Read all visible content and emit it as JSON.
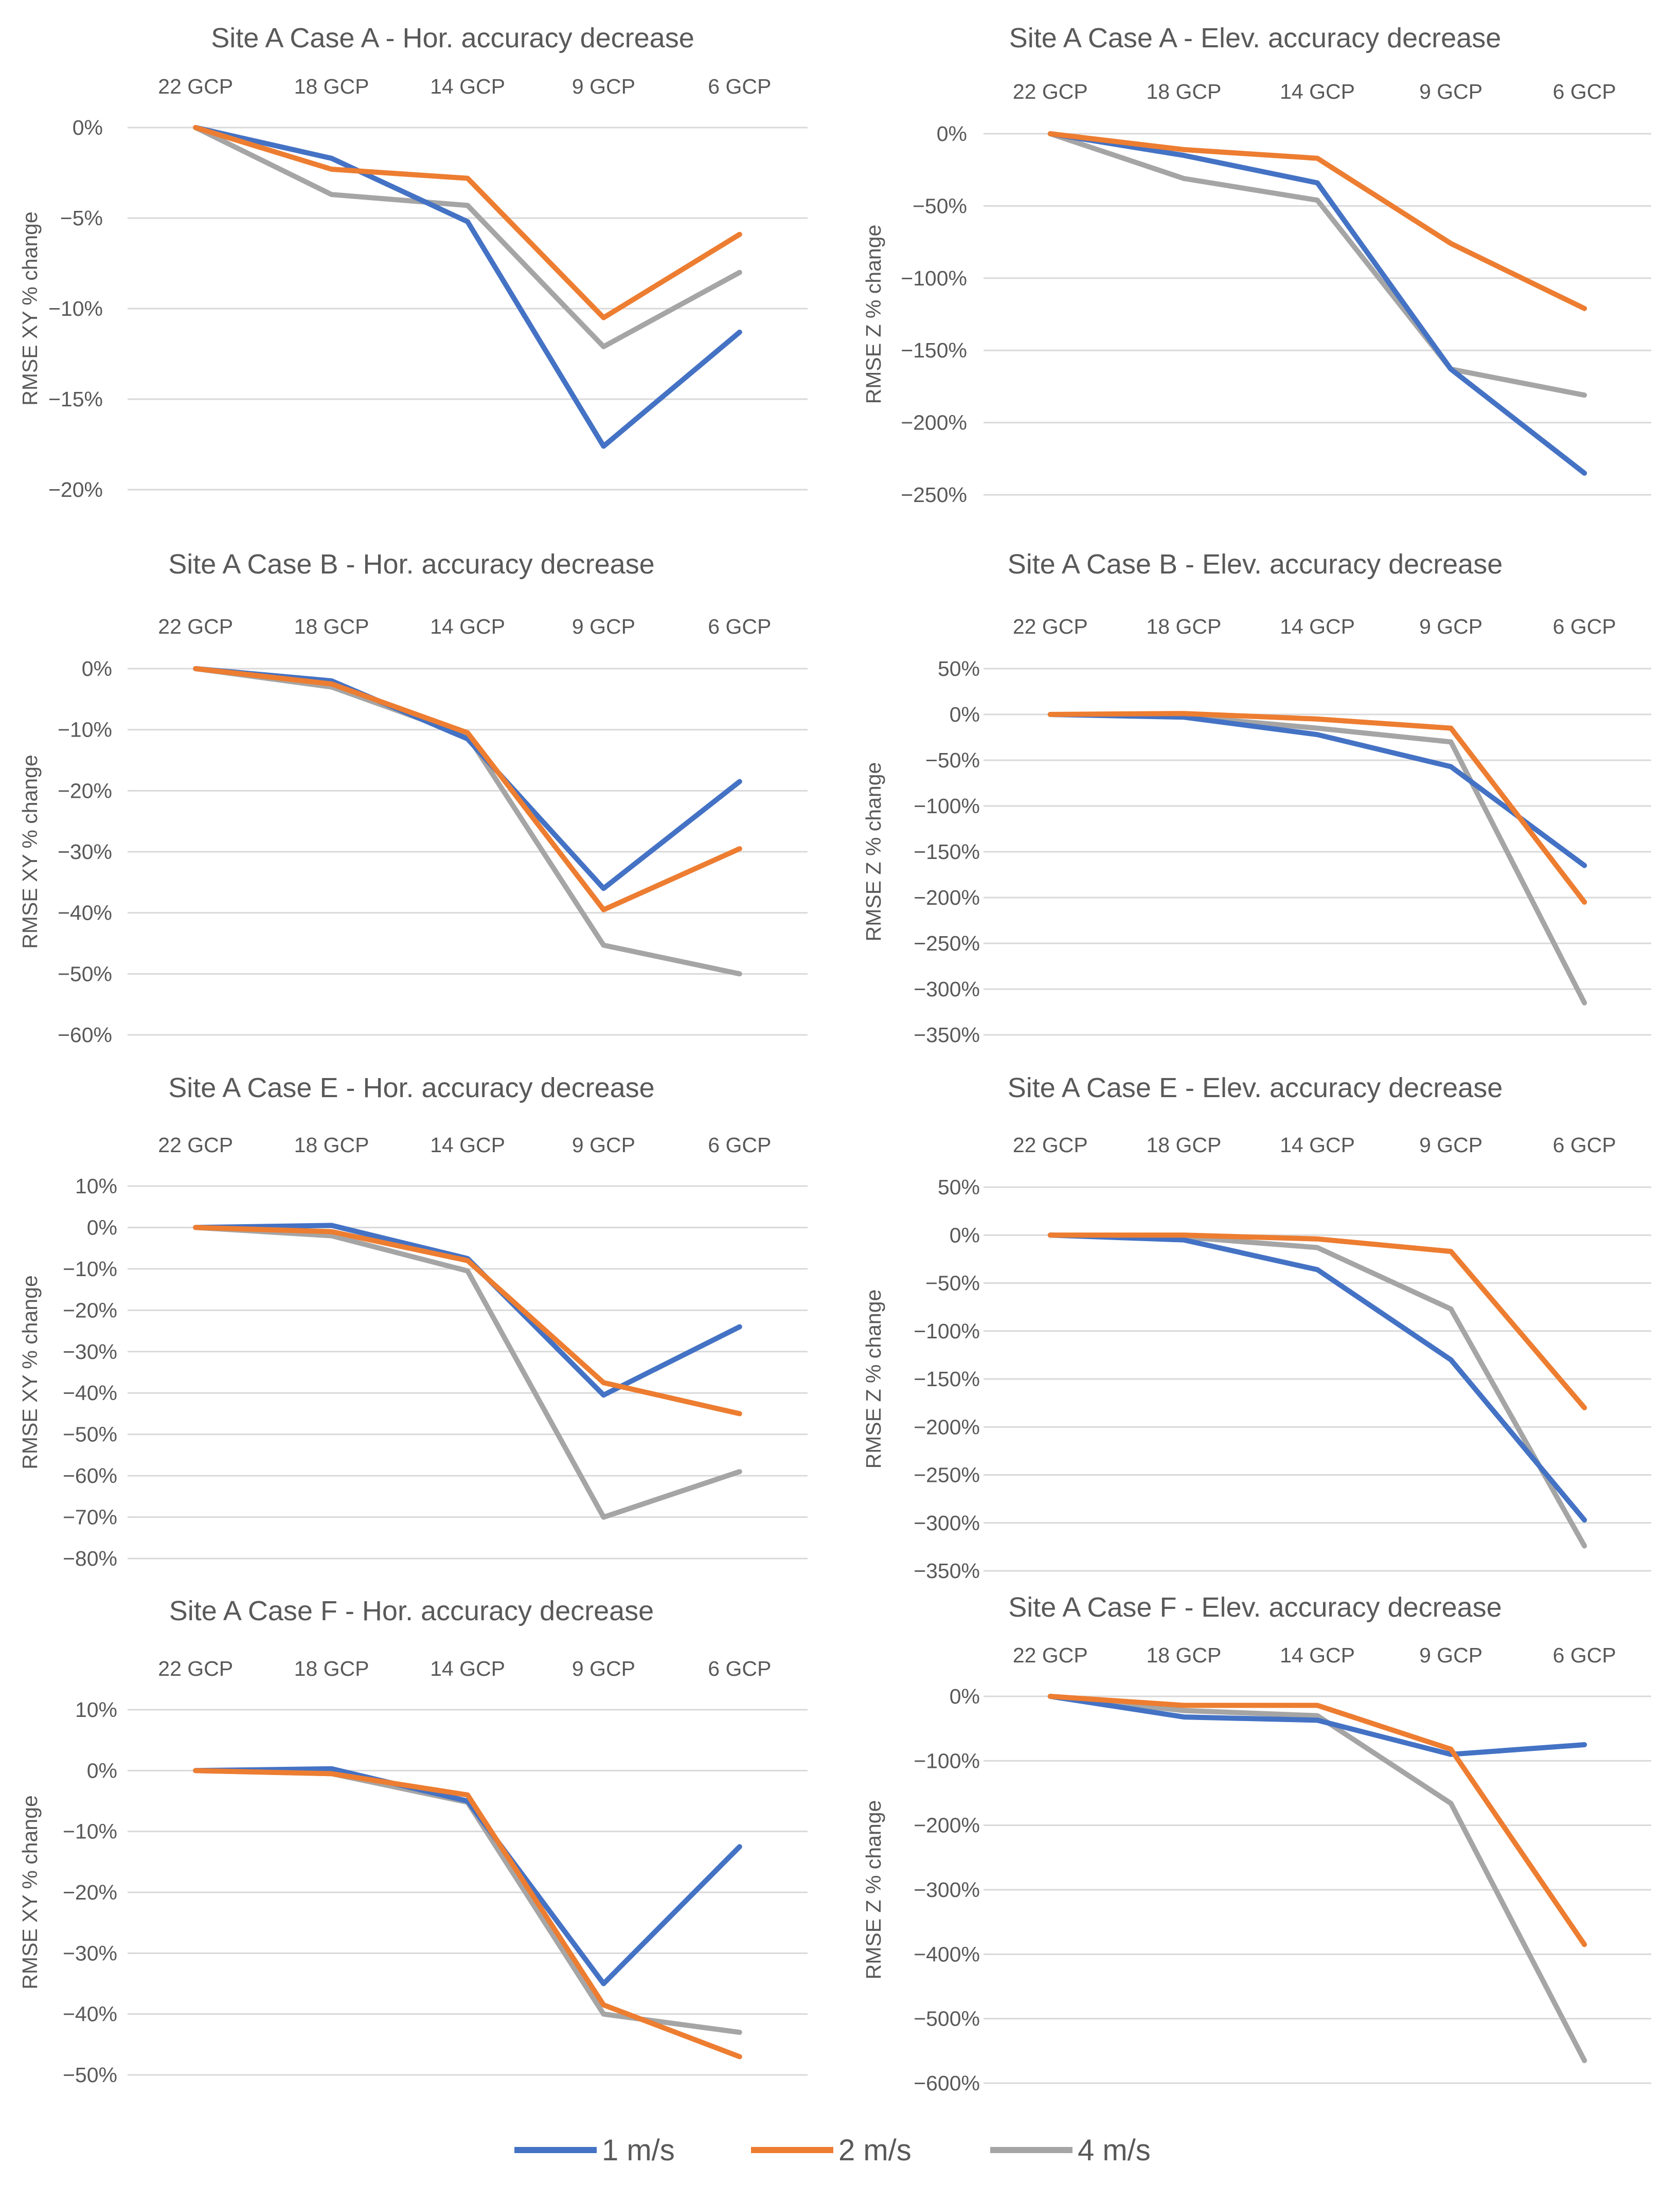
{
  "colors": {
    "1 m/s": "#4472c4",
    "2 m/s": "#ed7d31",
    "4 m/s": "#a5a5a5"
  },
  "legend": [
    {
      "label": "1 m/s",
      "color": "#4472c4"
    },
    {
      "label": "2 m/s",
      "color": "#ed7d31"
    },
    {
      "label": "4 m/s",
      "color": "#a5a5a5"
    }
  ],
  "chart_data": [
    {
      "type": "line",
      "title": "Site A Case A - Hor. accuracy decrease",
      "ylabel": "RMSE XY % change",
      "categories": [
        "22 GCP",
        "18 GCP",
        "14 GCP",
        "9 GCP",
        "6 GCP"
      ],
      "ylim": [
        -20,
        0
      ],
      "yticks": [
        0,
        -5,
        -10,
        -15,
        -20
      ],
      "ytick_labels": [
        "0%",
        "−5%",
        "−10%",
        "−15%",
        "−20%"
      ],
      "series": [
        {
          "name": "1 m/s",
          "values": [
            0,
            -1.7,
            -5.2,
            -17.6,
            -11.3
          ]
        },
        {
          "name": "2 m/s",
          "values": [
            0,
            -2.3,
            -2.8,
            -10.5,
            -5.9
          ]
        },
        {
          "name": "4 m/s",
          "values": [
            0,
            -3.7,
            -4.3,
            -12.1,
            -8.0
          ]
        }
      ]
    },
    {
      "type": "line",
      "title": "Site A Case A - Elev. accuracy decrease",
      "ylabel": "RMSE Z % change",
      "categories": [
        "22 GCP",
        "18 GCP",
        "14 GCP",
        "9 GCP",
        "6 GCP"
      ],
      "ylim": [
        -250,
        0
      ],
      "yticks": [
        0,
        -50,
        -100,
        -150,
        -200,
        -250
      ],
      "ytick_labels": [
        "0%",
        "−50%",
        "−100%",
        "−150%",
        "−200%",
        "−250%"
      ],
      "series": [
        {
          "name": "1 m/s",
          "values": [
            0,
            -15,
            -34,
            -163,
            -235
          ]
        },
        {
          "name": "2 m/s",
          "values": [
            0,
            -11,
            -17,
            -76,
            -121
          ]
        },
        {
          "name": "4 m/s",
          "values": [
            0,
            -31,
            -46,
            -163,
            -181
          ]
        }
      ]
    },
    {
      "type": "line",
      "title": "Site A Case B - Hor. accuracy decrease",
      "ylabel": "RMSE XY % change",
      "categories": [
        "22 GCP",
        "18 GCP",
        "14 GCP",
        "9 GCP",
        "6 GCP"
      ],
      "ylim": [
        -60,
        0
      ],
      "yticks": [
        0,
        -10,
        -20,
        -30,
        -40,
        -50,
        -60
      ],
      "ytick_labels": [
        "0%",
        "−10%",
        "−20%",
        "−30%",
        "−40%",
        "−50%",
        "−60%"
      ],
      "series": [
        {
          "name": "1 m/s",
          "values": [
            0,
            -2,
            -11.5,
            -36,
            -18.5
          ]
        },
        {
          "name": "2 m/s",
          "values": [
            0,
            -2.5,
            -10.5,
            -39.5,
            -29.5
          ]
        },
        {
          "name": "4 m/s",
          "values": [
            0,
            -3,
            -11,
            -45.3,
            -50
          ]
        }
      ]
    },
    {
      "type": "line",
      "title": "Site A Case B - Elev. accuracy decrease",
      "ylabel": "RMSE Z % change",
      "categories": [
        "22 GCP",
        "18 GCP",
        "14 GCP",
        "9 GCP",
        "6 GCP"
      ],
      "ylim": [
        -350,
        50
      ],
      "yticks": [
        50,
        0,
        -50,
        -100,
        -150,
        -200,
        -250,
        -300,
        -350
      ],
      "ytick_labels": [
        "50%",
        "0%",
        "−50%",
        "−100%",
        "−150%",
        "−200%",
        "−250%",
        "−300%",
        "−350%"
      ],
      "series": [
        {
          "name": "1 m/s",
          "values": [
            0,
            -3,
            -22,
            -57,
            -165
          ]
        },
        {
          "name": "2 m/s",
          "values": [
            0,
            1,
            -5,
            -15,
            -205
          ]
        },
        {
          "name": "4 m/s",
          "values": [
            0,
            -2,
            -15,
            -30,
            -315
          ]
        }
      ]
    },
    {
      "type": "line",
      "title": "Site A Case E - Hor. accuracy decrease",
      "ylabel": "RMSE XY % change",
      "categories": [
        "22 GCP",
        "18 GCP",
        "14 GCP",
        "9 GCP",
        "6 GCP"
      ],
      "ylim": [
        -80,
        10
      ],
      "yticks": [
        10,
        0,
        -10,
        -20,
        -30,
        -40,
        -50,
        -60,
        -70,
        -80
      ],
      "ytick_labels": [
        "10%",
        "0%",
        "−10%",
        "−20%",
        "−30%",
        "−40%",
        "−50%",
        "−60%",
        "−70%",
        "−80%"
      ],
      "series": [
        {
          "name": "1 m/s",
          "values": [
            0,
            0.5,
            -7.5,
            -40.5,
            -24
          ]
        },
        {
          "name": "2 m/s",
          "values": [
            0,
            -1,
            -8,
            -37.5,
            -45
          ]
        },
        {
          "name": "4 m/s",
          "values": [
            0,
            -2,
            -10.5,
            -70,
            -59
          ]
        }
      ]
    },
    {
      "type": "line",
      "title": "Site A Case E - Elev. accuracy decrease",
      "ylabel": "RMSE Z % change",
      "categories": [
        "22 GCP",
        "18 GCP",
        "14 GCP",
        "9 GCP",
        "6 GCP"
      ],
      "ylim": [
        -350,
        50
      ],
      "yticks": [
        50,
        0,
        -50,
        -100,
        -150,
        -200,
        -250,
        -300,
        -350
      ],
      "ytick_labels": [
        "50%",
        "0%",
        "−50%",
        "−100%",
        "−150%",
        "−200%",
        "−250%",
        "−300%",
        "−350%"
      ],
      "series": [
        {
          "name": "1 m/s",
          "values": [
            0,
            -5,
            -36,
            -130,
            -297
          ]
        },
        {
          "name": "2 m/s",
          "values": [
            0,
            0,
            -4,
            -17,
            -180
          ]
        },
        {
          "name": "4 m/s",
          "values": [
            0,
            -2,
            -13,
            -77,
            -324
          ]
        }
      ]
    },
    {
      "type": "line",
      "title": "Site A Case F - Hor. accuracy decrease",
      "ylabel": "RMSE XY % change",
      "categories": [
        "22 GCP",
        "18 GCP",
        "14 GCP",
        "9 GCP",
        "6 GCP"
      ],
      "ylim": [
        -50,
        10
      ],
      "yticks": [
        10,
        0,
        -10,
        -20,
        -30,
        -40,
        -50
      ],
      "ytick_labels": [
        "10%",
        "0%",
        "−10%",
        "−20%",
        "−30%",
        "−40%",
        "−50%"
      ],
      "series": [
        {
          "name": "1 m/s",
          "values": [
            0,
            0.3,
            -5,
            -35,
            -12.5
          ]
        },
        {
          "name": "2 m/s",
          "values": [
            0,
            -0.5,
            -4,
            -38.5,
            -47
          ]
        },
        {
          "name": "4 m/s",
          "values": [
            0,
            -0.5,
            -5.2,
            -40,
            -43
          ]
        }
      ]
    },
    {
      "type": "line",
      "title": "Site A Case F - Elev. accuracy decrease",
      "ylabel": "RMSE Z % change",
      "categories": [
        "22 GCP",
        "18 GCP",
        "14 GCP",
        "9 GCP",
        "6 GCP"
      ],
      "ylim": [
        -600,
        0
      ],
      "yticks": [
        0,
        -100,
        -200,
        -300,
        -400,
        -500,
        -600
      ],
      "ytick_labels": [
        "0%",
        "−100%",
        "−200%",
        "−300%",
        "−400%",
        "−500%",
        "−600%"
      ],
      "series": [
        {
          "name": "1 m/s",
          "values": [
            0,
            -32,
            -37,
            -90,
            -75
          ]
        },
        {
          "name": "2 m/s",
          "values": [
            0,
            -14,
            -14,
            -82,
            -385
          ]
        },
        {
          "name": "4 m/s",
          "values": [
            0,
            -22,
            -30,
            -166,
            -565
          ]
        }
      ]
    }
  ]
}
